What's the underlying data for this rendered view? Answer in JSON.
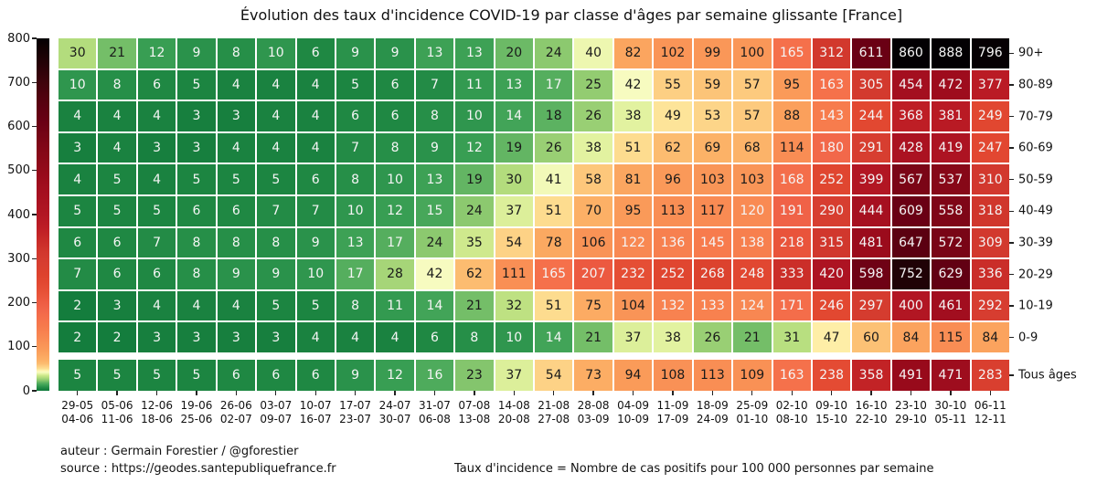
{
  "chart_data": {
    "type": "heatmap",
    "title": "Évolution des taux d'incidence COVID-19 par classe d'âges par semaine glissante [France]",
    "colorbar": {
      "min": 0,
      "max": 800,
      "ticks": [
        800,
        700,
        600,
        500,
        400,
        300,
        200,
        100,
        0
      ]
    },
    "columns": [
      {
        "start": "29-05",
        "end": "04-06"
      },
      {
        "start": "05-06",
        "end": "11-06"
      },
      {
        "start": "12-06",
        "end": "18-06"
      },
      {
        "start": "19-06",
        "end": "25-06"
      },
      {
        "start": "26-06",
        "end": "02-07"
      },
      {
        "start": "03-07",
        "end": "09-07"
      },
      {
        "start": "10-07",
        "end": "16-07"
      },
      {
        "start": "17-07",
        "end": "23-07"
      },
      {
        "start": "24-07",
        "end": "30-07"
      },
      {
        "start": "31-07",
        "end": "06-08"
      },
      {
        "start": "07-08",
        "end": "13-08"
      },
      {
        "start": "14-08",
        "end": "20-08"
      },
      {
        "start": "21-08",
        "end": "27-08"
      },
      {
        "start": "28-08",
        "end": "03-09"
      },
      {
        "start": "04-09",
        "end": "10-09"
      },
      {
        "start": "11-09",
        "end": "17-09"
      },
      {
        "start": "18-09",
        "end": "24-09"
      },
      {
        "start": "25-09",
        "end": "01-10"
      },
      {
        "start": "02-10",
        "end": "08-10"
      },
      {
        "start": "09-10",
        "end": "15-10"
      },
      {
        "start": "16-10",
        "end": "22-10"
      },
      {
        "start": "23-10",
        "end": "29-10"
      },
      {
        "start": "30-10",
        "end": "05-11"
      },
      {
        "start": "06-11",
        "end": "12-11"
      }
    ],
    "rows": [
      {
        "label": "90+",
        "values": [
          30,
          21,
          12,
          9,
          8,
          10,
          6,
          9,
          9,
          13,
          13,
          20,
          24,
          40,
          82,
          102,
          99,
          100,
          165,
          312,
          611,
          860,
          888,
          796
        ]
      },
      {
        "label": "80-89",
        "values": [
          10,
          8,
          6,
          5,
          4,
          4,
          4,
          5,
          6,
          7,
          11,
          13,
          17,
          25,
          42,
          55,
          59,
          57,
          95,
          163,
          305,
          454,
          472,
          377
        ]
      },
      {
        "label": "70-79",
        "values": [
          4,
          4,
          4,
          3,
          3,
          4,
          4,
          6,
          6,
          8,
          10,
          14,
          18,
          26,
          38,
          49,
          53,
          57,
          88,
          143,
          244,
          368,
          381,
          249
        ]
      },
      {
        "label": "60-69",
        "values": [
          3,
          4,
          3,
          3,
          4,
          4,
          4,
          7,
          8,
          9,
          12,
          19,
          26,
          38,
          51,
          62,
          69,
          68,
          114,
          180,
          291,
          428,
          419,
          247
        ]
      },
      {
        "label": "50-59",
        "values": [
          4,
          5,
          4,
          5,
          5,
          5,
          6,
          8,
          10,
          13,
          19,
          30,
          41,
          58,
          81,
          96,
          103,
          103,
          168,
          252,
          399,
          567,
          537,
          310
        ]
      },
      {
        "label": "40-49",
        "values": [
          5,
          5,
          5,
          6,
          6,
          7,
          7,
          10,
          12,
          15,
          24,
          37,
          51,
          70,
          95,
          113,
          117,
          120,
          191,
          290,
          444,
          609,
          558,
          318
        ]
      },
      {
        "label": "30-39",
        "values": [
          6,
          6,
          7,
          8,
          8,
          8,
          9,
          13,
          17,
          24,
          35,
          54,
          78,
          106,
          122,
          136,
          145,
          138,
          218,
          315,
          481,
          647,
          572,
          309
        ]
      },
      {
        "label": "20-29",
        "values": [
          7,
          6,
          6,
          8,
          9,
          9,
          10,
          17,
          28,
          42,
          62,
          111,
          165,
          207,
          232,
          252,
          268,
          248,
          333,
          420,
          598,
          752,
          629,
          336
        ]
      },
      {
        "label": "10-19",
        "values": [
          2,
          3,
          4,
          4,
          4,
          5,
          5,
          8,
          11,
          14,
          21,
          32,
          51,
          75,
          104,
          132,
          133,
          124,
          171,
          246,
          297,
          400,
          461,
          292
        ]
      },
      {
        "label": "0-9",
        "values": [
          2,
          2,
          3,
          3,
          3,
          3,
          4,
          4,
          4,
          6,
          8,
          10,
          14,
          21,
          37,
          38,
          26,
          21,
          31,
          47,
          60,
          84,
          115,
          84
        ]
      }
    ],
    "total_row": {
      "label": "Tous âges",
      "values": [
        5,
        5,
        5,
        5,
        6,
        6,
        6,
        9,
        12,
        16,
        23,
        37,
        54,
        73,
        94,
        108,
        113,
        109,
        163,
        238,
        358,
        491,
        471,
        283
      ]
    },
    "colormap_stops": [
      [
        0,
        "#0d7a3c"
      ],
      [
        3,
        "#177f3e"
      ],
      [
        6,
        "#1f8843"
      ],
      [
        9,
        "#2a924b"
      ],
      [
        12,
        "#389e53"
      ],
      [
        15,
        "#47a75a"
      ],
      [
        17,
        "#55ae5e"
      ],
      [
        19,
        "#63b563"
      ],
      [
        21,
        "#74be68"
      ],
      [
        24,
        "#8cc96f"
      ],
      [
        27,
        "#a0d276"
      ],
      [
        30,
        "#b3dc7d"
      ],
      [
        34,
        "#c8e687"
      ],
      [
        38,
        "#e2f2a0"
      ],
      [
        42,
        "#f7fbc0"
      ],
      [
        46,
        "#fef3ae"
      ],
      [
        50,
        "#fddf92"
      ],
      [
        55,
        "#fdcf83"
      ],
      [
        62,
        "#fcbc70"
      ],
      [
        70,
        "#fcb066"
      ],
      [
        82,
        "#fba55f"
      ],
      [
        95,
        "#fa9a59"
      ],
      [
        110,
        "#f99055"
      ],
      [
        130,
        "#f88350"
      ],
      [
        150,
        "#f6784c"
      ],
      [
        165,
        "#f5704b"
      ],
      [
        185,
        "#f16549"
      ],
      [
        205,
        "#ed5a41"
      ],
      [
        225,
        "#e75137"
      ],
      [
        245,
        "#e24831"
      ],
      [
        265,
        "#dd422e"
      ],
      [
        290,
        "#d73e30"
      ],
      [
        315,
        "#d1372d"
      ],
      [
        340,
        "#c92b28"
      ],
      [
        370,
        "#bd1d25"
      ],
      [
        400,
        "#b21623"
      ],
      [
        430,
        "#aa1221"
      ],
      [
        460,
        "#a20e1f"
      ],
      [
        490,
        "#980a1b"
      ],
      [
        520,
        "#8d0919"
      ],
      [
        550,
        "#820717"
      ],
      [
        580,
        "#760416"
      ],
      [
        610,
        "#6a0014"
      ],
      [
        640,
        "#5e0012"
      ],
      [
        670,
        "#4f020f"
      ],
      [
        700,
        "#3f030c"
      ],
      [
        740,
        "#270207"
      ],
      [
        780,
        "#100102"
      ],
      [
        800,
        "#030003"
      ]
    ],
    "text_rule": {
      "white_below_or_equal": 17,
      "white_at_or_above": 120
    },
    "text_colors": {
      "dark": "#1a1a1a",
      "light": "#f5f5f5"
    }
  },
  "footer": {
    "author": "auteur : Germain Forestier / @gforestier",
    "source": "source : https://geodes.santepubliquefrance.fr",
    "note": "Taux d'incidence = Nombre de cas positifs pour 100 000 personnes par semaine"
  }
}
